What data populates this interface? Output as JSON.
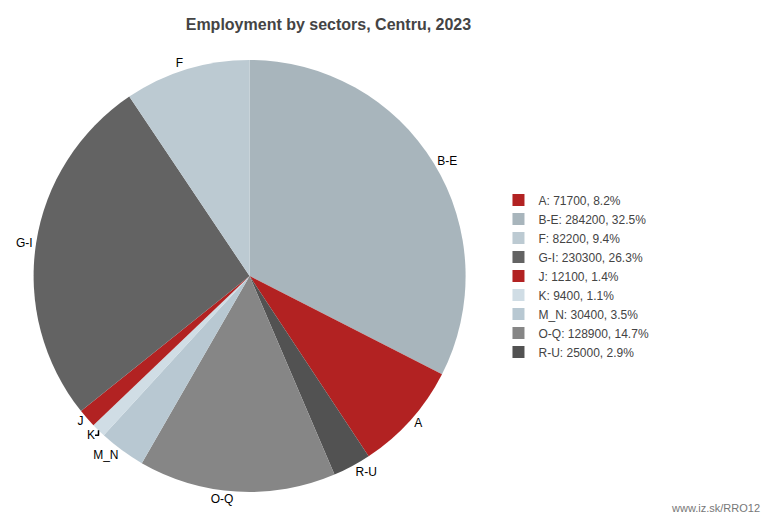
{
  "chart_data": {
    "type": "pie",
    "title": "Employment by sectors, Centru, 2023",
    "categories": [
      "B-E",
      "A",
      "R-U",
      "O-Q",
      "M_N",
      "K",
      "J",
      "G-I",
      "F"
    ],
    "values": [
      284200,
      71700,
      25000,
      128900,
      30400,
      9400,
      12100,
      230300,
      82200
    ],
    "colors": [
      "#a8b5bc",
      "#b22222",
      "#525252",
      "#868686",
      "#b8c8d2",
      "#d0dde5",
      "#b22222",
      "#636363",
      "#bccad2"
    ],
    "legend_entries": [
      {
        "name": "A: 71700, 8.2%",
        "color": "#b22222"
      },
      {
        "name": "B-E: 284200, 32.5%",
        "color": "#a8b5bc"
      },
      {
        "name": "F: 82200, 9.4%",
        "color": "#bccad2"
      },
      {
        "name": "G-I: 230300, 26.3%",
        "color": "#636363"
      },
      {
        "name": "J: 12100, 1.4%",
        "color": "#b22222"
      },
      {
        "name": "K: 9400, 1.1%",
        "color": "#d0dde5"
      },
      {
        "name": "M_N: 30400, 3.5%",
        "color": "#b8c8d2"
      },
      {
        "name": "O-Q: 128900, 14.7%",
        "color": "#868686"
      },
      {
        "name": "R-U: 25000, 2.9%",
        "color": "#525252"
      }
    ],
    "legend": "right",
    "annotations": [
      {
        "text": "www.iz.sk/RRO12"
      }
    ]
  }
}
